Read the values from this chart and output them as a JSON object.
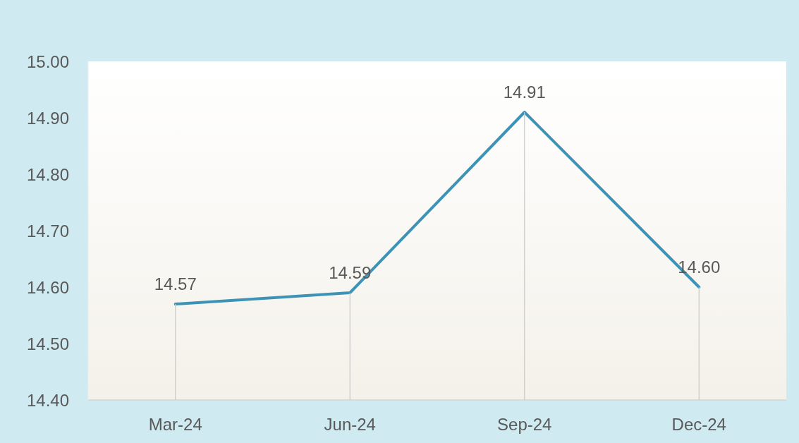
{
  "chart_data": {
    "type": "line",
    "categories": [
      "Mar-24",
      "Jun-24",
      "Sep-24",
      "Dec-24"
    ],
    "values": [
      14.57,
      14.59,
      14.91,
      14.6
    ],
    "value_labels": [
      "14.57",
      "14.59",
      "14.91",
      "14.60"
    ],
    "color": "#3d93b6",
    "ylim": [
      14.4,
      15.0
    ],
    "yticks": [
      {
        "value": 14.4,
        "label": "14.40"
      },
      {
        "value": 14.5,
        "label": "14.50"
      },
      {
        "value": 14.6,
        "label": "14.60"
      },
      {
        "value": 14.7,
        "label": "14.70"
      },
      {
        "value": 14.8,
        "label": "14.80"
      },
      {
        "value": 14.9,
        "label": "14.90"
      },
      {
        "value": 15.0,
        "label": "15.00"
      }
    ]
  }
}
